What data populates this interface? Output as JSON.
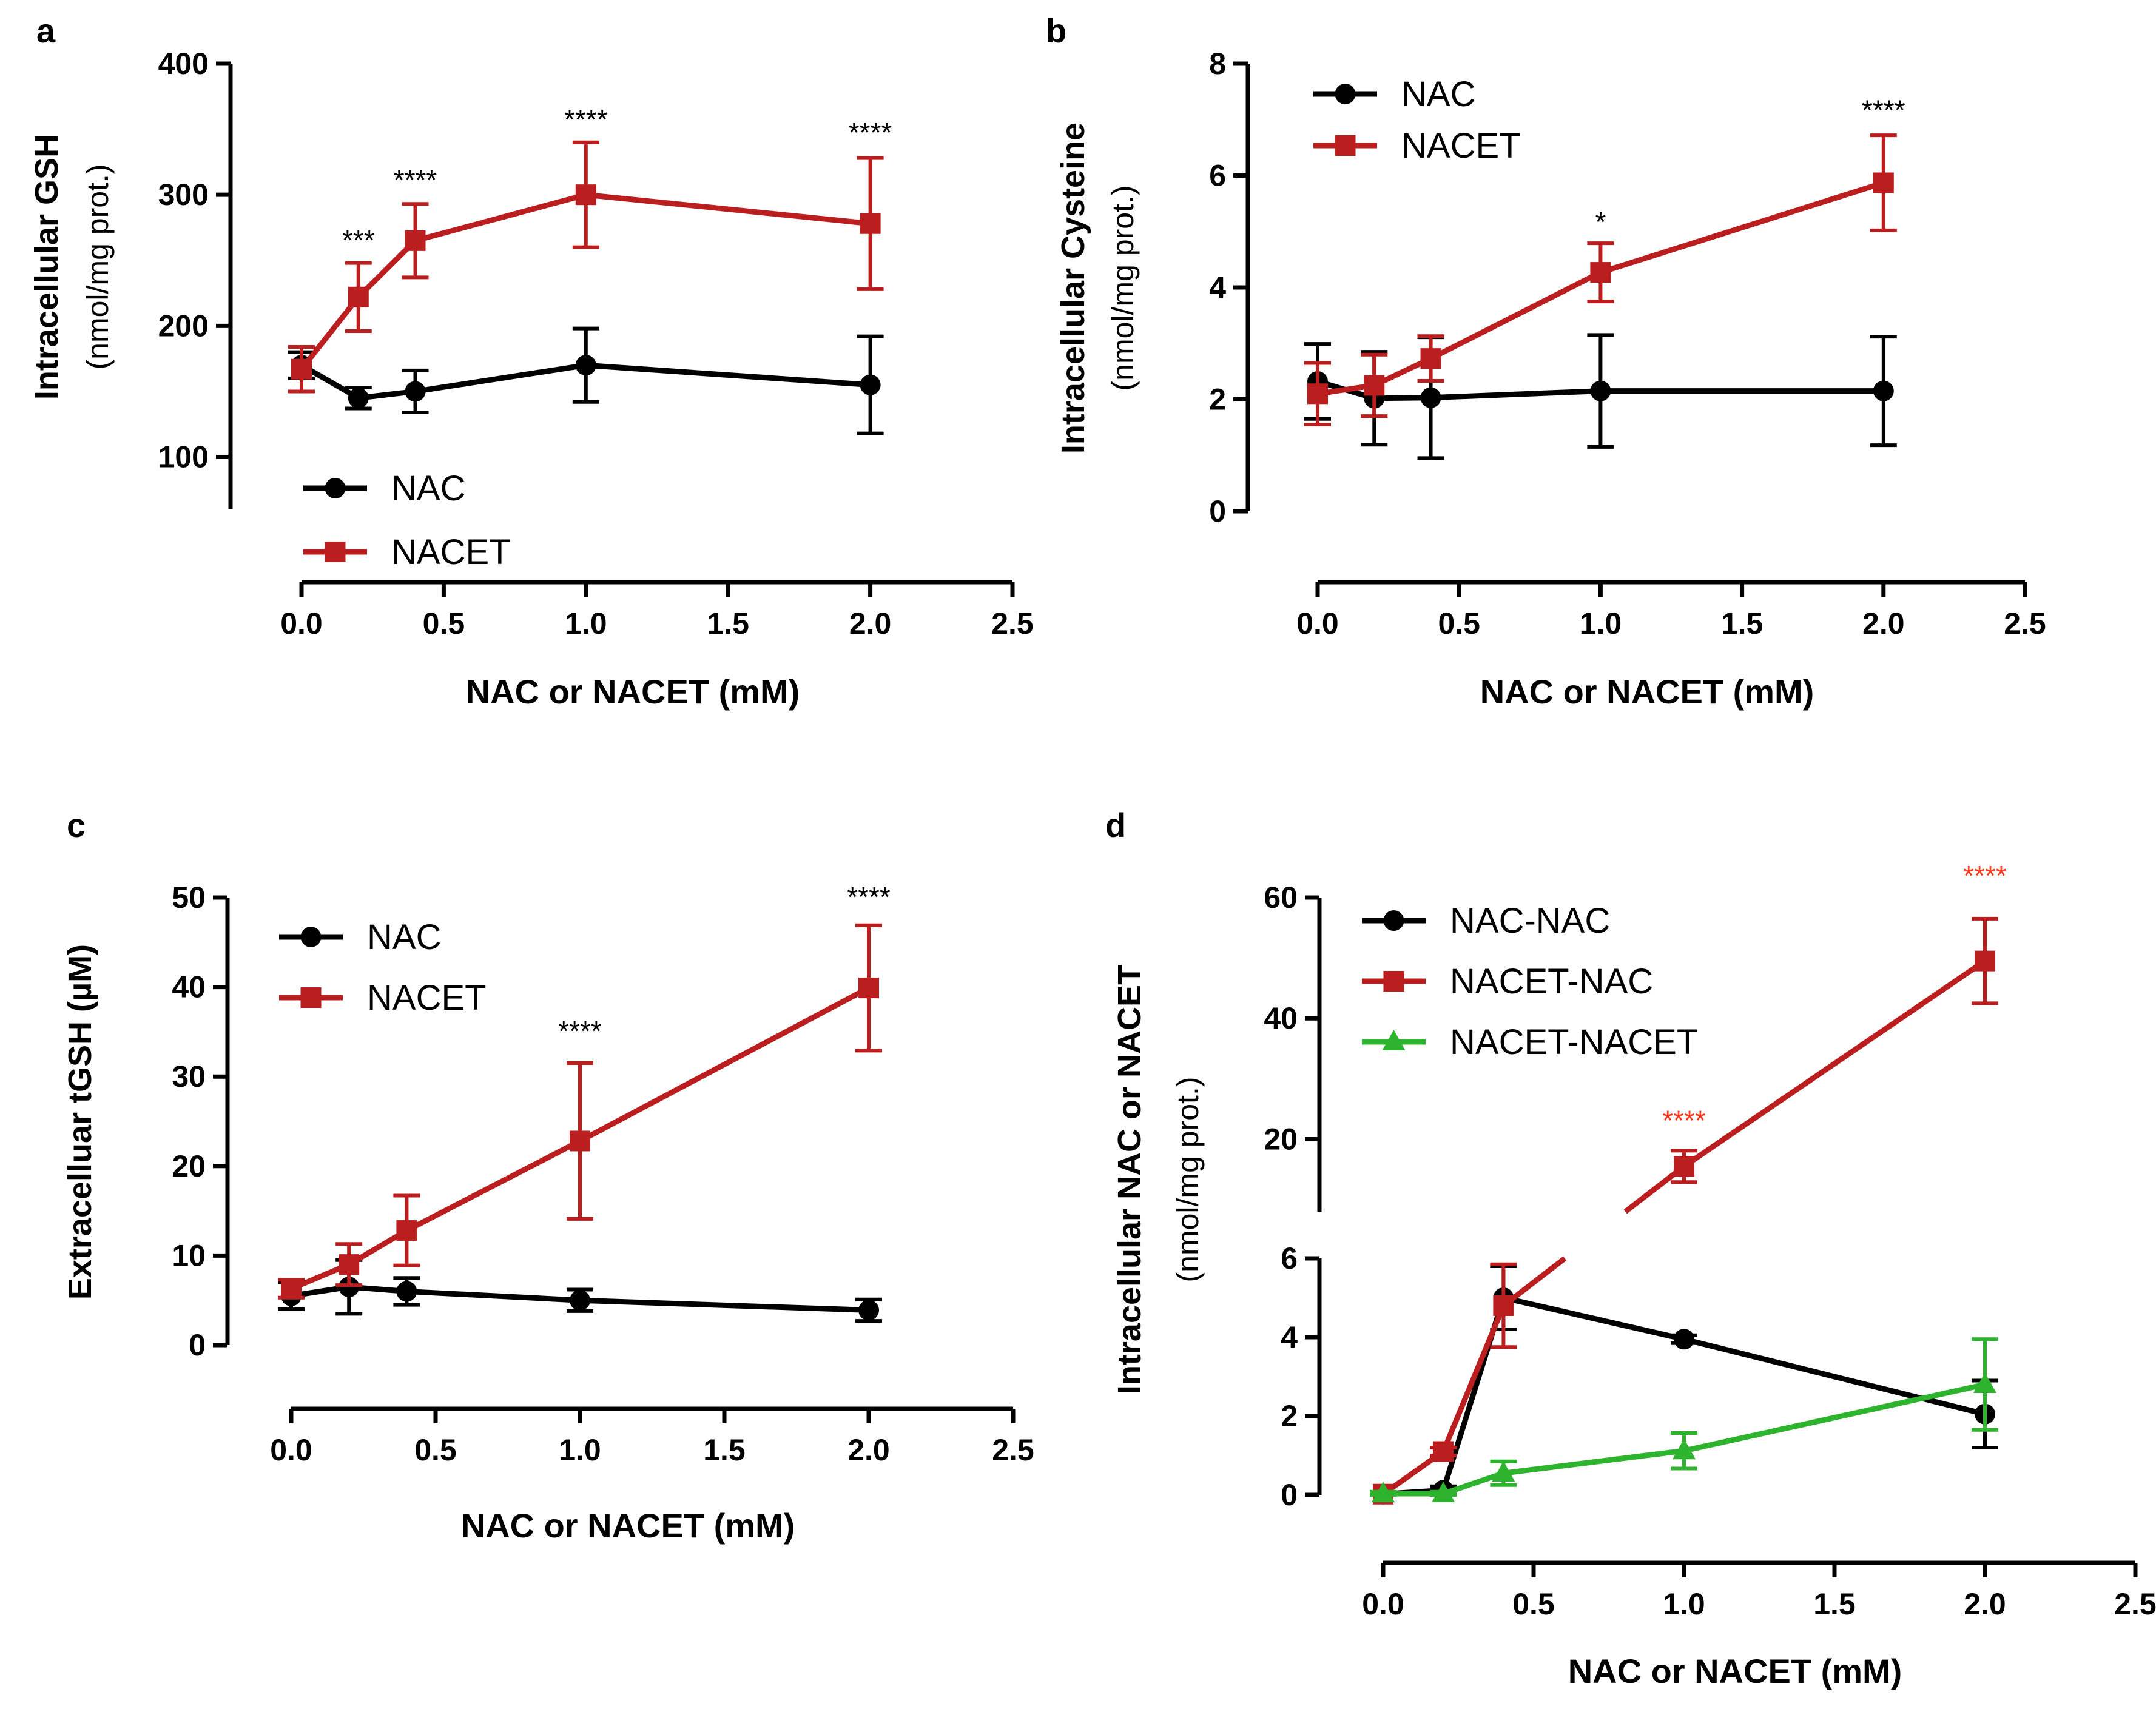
{
  "chart_data": [
    {
      "type": "line",
      "panel": "a",
      "xlabel": "NAC or NACET (mM)",
      "ylabel": "Intracellular GSH",
      "ylabel_units": "(nmol/mg prot.)",
      "xlim": [
        0,
        2.5
      ],
      "ylim": [
        60,
        400
      ],
      "xticks": [
        "0.0",
        "0.5",
        "1.0",
        "1.5",
        "2.0",
        "2.5"
      ],
      "yticks": [
        "100",
        "200",
        "300",
        "400"
      ],
      "legend": "bottom-left",
      "series": [
        {
          "name": "NAC",
          "color": "#000000",
          "marker": "circle",
          "x": [
            0,
            0.2,
            0.4,
            1.0,
            2.0
          ],
          "values": [
            170,
            145,
            150,
            170,
            155
          ],
          "errors": [
            10,
            8,
            16,
            28,
            37
          ]
        },
        {
          "name": "NACET",
          "color": "#bb1e1e",
          "marker": "square",
          "x": [
            0,
            0.2,
            0.4,
            1.0,
            2.0
          ],
          "values": [
            167,
            222,
            265,
            300,
            278
          ],
          "errors": [
            17,
            26,
            28,
            40,
            50
          ]
        }
      ],
      "annotations": [
        {
          "x": 0.2,
          "y": 258,
          "text": "***",
          "color": "#000000"
        },
        {
          "x": 0.4,
          "y": 304,
          "text": "****",
          "color": "#000000"
        },
        {
          "x": 1.0,
          "y": 350,
          "text": "****",
          "color": "#000000"
        },
        {
          "x": 2.0,
          "y": 340,
          "text": "****",
          "color": "#000000"
        }
      ]
    },
    {
      "type": "line",
      "panel": "b",
      "xlabel": "NAC or NACET (mM)",
      "ylabel": "Intracellular Cysteine",
      "ylabel_units": "(nmol/mg prot.)",
      "xlim": [
        0,
        2.5
      ],
      "ylim": [
        0,
        8
      ],
      "xticks": [
        "0.0",
        "0.5",
        "1.0",
        "1.5",
        "2.0",
        "2.5"
      ],
      "yticks": [
        "0",
        "2",
        "4",
        "6",
        "8"
      ],
      "legend": "top-left",
      "series": [
        {
          "name": "NAC",
          "color": "#000000",
          "marker": "circle",
          "x": [
            0,
            0.2,
            0.4,
            1.0,
            2.0
          ],
          "values": [
            2.32,
            2.02,
            2.03,
            2.15,
            2.15
          ],
          "errors": [
            0.67,
            0.83,
            1.08,
            1.0,
            0.97
          ]
        },
        {
          "name": "NACET",
          "color": "#bb1e1e",
          "marker": "square",
          "x": [
            0,
            0.2,
            0.4,
            1.0,
            2.0
          ],
          "values": [
            2.1,
            2.25,
            2.73,
            4.27,
            5.87
          ],
          "errors": [
            0.55,
            0.55,
            0.4,
            0.52,
            0.85
          ]
        }
      ],
      "annotations": [
        {
          "x": 1.0,
          "y": 5.0,
          "text": "*",
          "color": "#000000"
        },
        {
          "x": 2.0,
          "y": 7.0,
          "text": "****",
          "color": "#000000"
        }
      ]
    },
    {
      "type": "line",
      "panel": "c",
      "xlabel": "NAC or NACET (mM)",
      "ylabel": "Extracelluar tGSH (µM)",
      "xlim": [
        0,
        2.5
      ],
      "ylim": [
        0,
        50
      ],
      "xticks": [
        "0.0",
        "0.5",
        "1.0",
        "1.5",
        "2.0",
        "2.5"
      ],
      "yticks": [
        "0",
        "10",
        "20",
        "30",
        "40",
        "50"
      ],
      "legend": "top-left",
      "series": [
        {
          "name": "NAC",
          "color": "#000000",
          "marker": "circle",
          "x": [
            0,
            0.2,
            0.4,
            1.0,
            2.0
          ],
          "values": [
            5.5,
            6.5,
            6.0,
            5.0,
            3.9
          ],
          "errors": [
            1.5,
            3.0,
            1.5,
            1.2,
            1.2
          ]
        },
        {
          "name": "NACET",
          "color": "#bb1e1e",
          "marker": "square",
          "x": [
            0,
            0.2,
            0.4,
            1.0,
            2.0
          ],
          "values": [
            6.3,
            9.0,
            12.8,
            22.8,
            39.9
          ],
          "errors": [
            1.0,
            2.3,
            3.9,
            8.7,
            7.0
          ]
        }
      ],
      "annotations": [
        {
          "x": 1.0,
          "y": 34,
          "text": "****",
          "color": "#000000"
        },
        {
          "x": 2.0,
          "y": 49,
          "text": "****",
          "color": "#000000"
        }
      ]
    },
    {
      "type": "line",
      "panel": "d",
      "xlabel": "NAC or NACET (mM)",
      "ylabel": "Intracellular NAC or NACET",
      "ylabel_units": "(nmol/mg prot.)",
      "xlim": [
        0,
        2.5
      ],
      "y_axis_break": true,
      "ylim_lower": [
        0,
        6
      ],
      "ylim_upper": [
        8,
        60
      ],
      "yticks_lower": [
        "0",
        "2",
        "4",
        "6"
      ],
      "yticks_upper": [
        "20",
        "40",
        "60"
      ],
      "xticks": [
        "0.0",
        "0.5",
        "1.0",
        "1.5",
        "2.0",
        "2.5"
      ],
      "legend": "top-left",
      "series": [
        {
          "name": "NAC-NAC",
          "color": "#000000",
          "marker": "circle",
          "x": [
            0,
            0.2,
            0.4,
            1.0,
            2.0
          ],
          "values": [
            0.02,
            0.12,
            5.0,
            3.95,
            2.05
          ],
          "errors": [
            0.05,
            0.1,
            0.8,
            0.1,
            0.85
          ]
        },
        {
          "name": "NACET-NAC",
          "color": "#bb1e1e",
          "marker": "square",
          "x": [
            0,
            0.2,
            0.4,
            1.0,
            2.0
          ],
          "values": [
            0.02,
            1.1,
            4.8,
            15.5,
            49.5
          ],
          "errors": [
            0.05,
            0.1,
            1.05,
            2.6,
            7.0
          ]
        },
        {
          "name": "NACET-NACET",
          "color": "#2db32d",
          "marker": "triangle",
          "x": [
            0,
            0.2,
            0.4,
            1.0,
            2.0
          ],
          "values": [
            0.03,
            0.03,
            0.55,
            1.12,
            2.8
          ],
          "errors": [
            0.05,
            0.05,
            0.3,
            0.45,
            1.15
          ]
        }
      ],
      "annotations": [
        {
          "x": 1.0,
          "y": 21.5,
          "text": "****",
          "color": "#ff3b1f"
        },
        {
          "x": 2.0,
          "y": 62,
          "text": "****",
          "color": "#ff3b1f"
        }
      ]
    }
  ]
}
